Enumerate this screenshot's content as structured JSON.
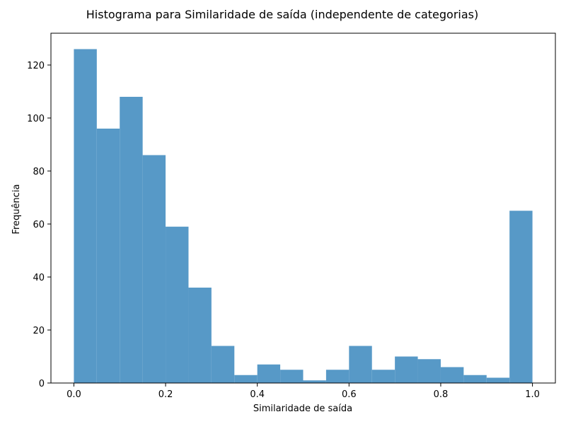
{
  "chart_data": {
    "type": "bar",
    "title": "Histograma para Similaridade de saída (independente de categorias)",
    "xlabel": "Similaridade de saída",
    "ylabel": "Frequência",
    "bin_edges": [
      0.0,
      0.05,
      0.1,
      0.15,
      0.2,
      0.25,
      0.3,
      0.35,
      0.4,
      0.45,
      0.5,
      0.55,
      0.6,
      0.65,
      0.7,
      0.75,
      0.8,
      0.85,
      0.9,
      0.95,
      1.0
    ],
    "values": [
      126,
      96,
      108,
      86,
      59,
      36,
      14,
      3,
      7,
      5,
      1,
      5,
      14,
      5,
      10,
      9,
      6,
      3,
      2,
      65
    ],
    "xlim": [
      -0.05,
      1.05
    ],
    "ylim": [
      0,
      132
    ],
    "xticks": [
      0.0,
      0.2,
      0.4,
      0.6,
      0.8,
      1.0
    ],
    "xtick_labels": [
      "0.0",
      "0.2",
      "0.4",
      "0.6",
      "0.8",
      "1.0"
    ],
    "yticks": [
      0,
      20,
      40,
      60,
      80,
      100,
      120
    ],
    "ytick_labels": [
      "0",
      "20",
      "40",
      "60",
      "80",
      "100",
      "120"
    ],
    "bar_color": "#5799c7",
    "grid": false
  }
}
